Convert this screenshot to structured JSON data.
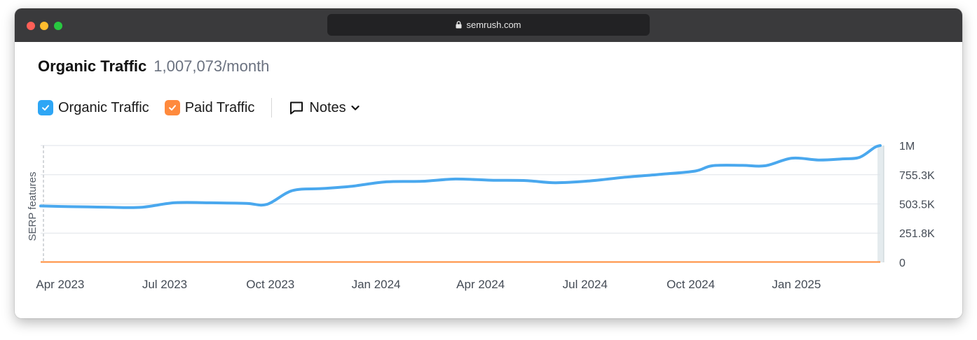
{
  "browser": {
    "url": "semrush.com",
    "icons": {
      "lock": "lock-icon"
    }
  },
  "header": {
    "title": "Organic Traffic",
    "value": "1,007,073/month"
  },
  "legend": {
    "organic_label": "Organic Traffic",
    "paid_label": "Paid Traffic",
    "notes_label": "Notes",
    "organic_color": "#4aa8ee",
    "paid_color": "#ff8c3a",
    "checkbox_blue": "#2ea6f5",
    "checkbox_orange": "#ff8a3d",
    "icons": {
      "check": "check-icon",
      "notes": "comment-icon",
      "dropdown": "chevron-down-icon"
    }
  },
  "chart_data": {
    "type": "line",
    "title": "Organic Traffic",
    "ylabel_left": "SERP features",
    "y_ticks": [
      "0",
      "251.8K",
      "503.5K",
      "755.3K",
      "1M"
    ],
    "y_tick_values": [
      0,
      251800,
      503500,
      755300,
      1007073
    ],
    "ylim": [
      0,
      1007073
    ],
    "x_tick_labels": [
      "Apr 2023",
      "Jul 2023",
      "Oct 2023",
      "Jan 2024",
      "Apr 2024",
      "Jul 2024",
      "Oct 2024",
      "Jan 2025"
    ],
    "x_tick_dates": [
      "2023-04-01",
      "2023-07-01",
      "2023-10-01",
      "2024-01-01",
      "2024-04-01",
      "2024-07-01",
      "2024-10-01",
      "2025-01-01"
    ],
    "xlim": [
      "2023-03-15",
      "2025-03-15"
    ],
    "grid": true,
    "legend_position": "top-left",
    "series": [
      {
        "name": "Organic Traffic",
        "color": "#4aa8ee",
        "points": [
          [
            "2023-03-15",
            486000
          ],
          [
            "2023-04-10",
            480000
          ],
          [
            "2023-05-10",
            476000
          ],
          [
            "2023-06-10",
            474000
          ],
          [
            "2023-07-10",
            514000
          ],
          [
            "2023-08-10",
            513000
          ],
          [
            "2023-09-10",
            508000
          ],
          [
            "2023-09-28",
            500000
          ],
          [
            "2023-10-20",
            618000
          ],
          [
            "2023-11-15",
            636000
          ],
          [
            "2023-12-10",
            655000
          ],
          [
            "2024-01-10",
            694000
          ],
          [
            "2024-02-10",
            699000
          ],
          [
            "2024-03-10",
            718000
          ],
          [
            "2024-04-10",
            708000
          ],
          [
            "2024-05-10",
            705000
          ],
          [
            "2024-06-05",
            686000
          ],
          [
            "2024-07-05",
            702000
          ],
          [
            "2024-08-05",
            734000
          ],
          [
            "2024-09-05",
            759000
          ],
          [
            "2024-10-05",
            787000
          ],
          [
            "2024-10-20",
            833000
          ],
          [
            "2024-11-15",
            836000
          ],
          [
            "2024-12-05",
            833000
          ],
          [
            "2024-12-28",
            898000
          ],
          [
            "2025-01-20",
            882000
          ],
          [
            "2025-02-10",
            892000
          ],
          [
            "2025-02-25",
            905000
          ],
          [
            "2025-03-10",
            990000
          ],
          [
            "2025-03-15",
            1007073
          ]
        ]
      },
      {
        "name": "Paid Traffic",
        "color": "#ff8c3a",
        "points": [
          [
            "2023-03-15",
            0
          ],
          [
            "2025-03-15",
            0
          ]
        ]
      }
    ]
  }
}
